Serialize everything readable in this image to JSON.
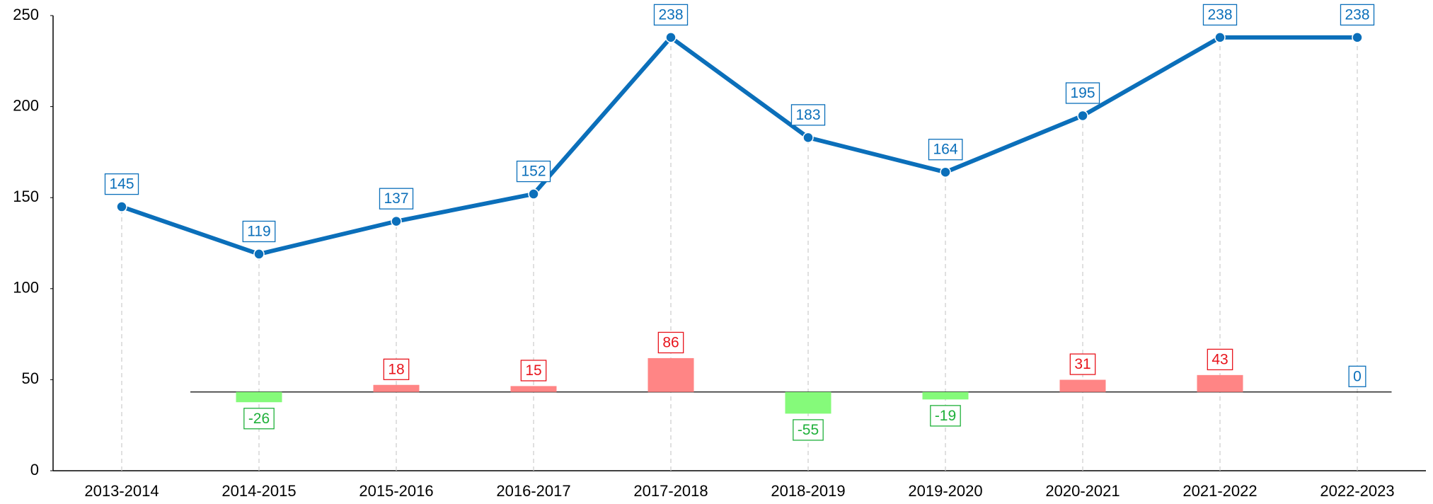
{
  "chart_data": {
    "type": "line",
    "categories": [
      "2013-2014",
      "2014-2015",
      "2015-2016",
      "2016-2017",
      "2017-2018",
      "2018-2019",
      "2019-2020",
      "2020-2021",
      "2021-2022",
      "2022-2023"
    ],
    "series": [
      {
        "color": "#0b6fba",
        "values": [
          145,
          119,
          137,
          152,
          238,
          183,
          164,
          195,
          238,
          238
        ]
      },
      {
        "type": "bar",
        "axis": "y2",
        "values": [
          null,
          -26,
          18,
          15,
          86,
          -55,
          -19,
          31,
          43,
          0
        ],
        "positive_color": "#ff8585",
        "negative_color": "#85fa7a",
        "positive_label_color": "#e8141c",
        "negative_label_color": "#1fb03a",
        "zero_label_color": "#0b6fba"
      }
    ],
    "ylim": [
      0,
      250
    ],
    "yticks": [
      0,
      50,
      100,
      150,
      200,
      250
    ],
    "y2lim": [
      -200,
      956
    ]
  }
}
